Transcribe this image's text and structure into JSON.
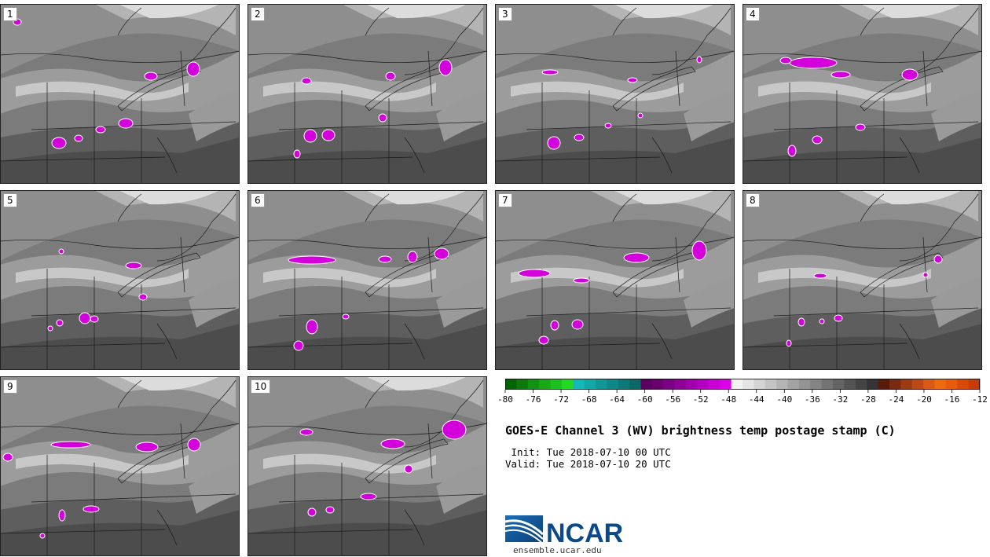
{
  "stamps": [
    {
      "label": "1"
    },
    {
      "label": "2"
    },
    {
      "label": "3"
    },
    {
      "label": "4"
    },
    {
      "label": "5"
    },
    {
      "label": "6"
    },
    {
      "label": "7"
    },
    {
      "label": "8"
    },
    {
      "label": "9"
    },
    {
      "label": "10"
    }
  ],
  "colorbar": {
    "colors": [
      "#006400",
      "#0b7a0b",
      "#119211",
      "#17a917",
      "#1dc11d",
      "#23d923",
      "#14b8b8",
      "#12a8a8",
      "#109898",
      "#0e8888",
      "#0c7878",
      "#0a6868",
      "#5a0060",
      "#6a0070",
      "#7c0084",
      "#8e0098",
      "#a000ac",
      "#b400c0",
      "#c800d4",
      "#dc00e8",
      "#f2f2f2",
      "#e4e4e4",
      "#d4d4d4",
      "#c4c4c4",
      "#b4b4b4",
      "#a4a4a4",
      "#949494",
      "#848484",
      "#747474",
      "#646464",
      "#545454",
      "#444444",
      "#343434",
      "#5a1a0a",
      "#7a2a10",
      "#9c3a12",
      "#bc4a14",
      "#d85a14",
      "#ec6a10",
      "#e85a0c",
      "#d84a08",
      "#c83a06"
    ],
    "tick_labels": [
      "-80",
      "-76",
      "-72",
      "-68",
      "-64",
      "-60",
      "-56",
      "-52",
      "-48",
      "-44",
      "-40",
      "-36",
      "-32",
      "-28",
      "-24",
      "-20",
      "-16",
      "-12"
    ]
  },
  "title": "GOES-E Channel 3 (WV) brightness temp postage stamp (C)",
  "init_line": " Init: Tue 2018-07-10 00 UTC",
  "valid_line": "Valid: Tue 2018-07-10 20 UTC",
  "logo_text": "NCAR",
  "logo_url": "ensemble.ucar.edu"
}
